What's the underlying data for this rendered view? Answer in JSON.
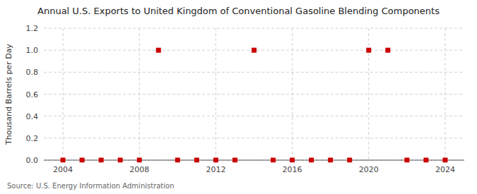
{
  "chart_data": {
    "type": "scatter",
    "title": "Annual U.S. Exports to United Kingdom of Conventional Gasoline Blending Components",
    "y_label": "Thousand Barrels per Day",
    "source": "Source: U.S. Energy Information Administration",
    "x": [
      2004,
      2005,
      2006,
      2007,
      2008,
      2009,
      2010,
      2011,
      2012,
      2013,
      2014,
      2015,
      2016,
      2017,
      2018,
      2019,
      2020,
      2021,
      2022,
      2023,
      2024
    ],
    "values": [
      0,
      0,
      0,
      0,
      0,
      1,
      0,
      0,
      0,
      0,
      1,
      0,
      0,
      0,
      0,
      0,
      1,
      1,
      0,
      0,
      0
    ],
    "color": "#cc0000",
    "marker": "square",
    "xlim": [
      2003,
      2025
    ],
    "xticks": [
      2004,
      2008,
      2012,
      2016,
      2020,
      2024
    ],
    "ylim": [
      0.0,
      1.2
    ],
    "yticks": [
      {
        "value": 0.0,
        "label": "0.0"
      },
      0.2,
      0.4,
      0.6,
      0.8,
      {
        "value": 1.0,
        "label": "1.0"
      },
      1.2
    ],
    "grid": true
  }
}
